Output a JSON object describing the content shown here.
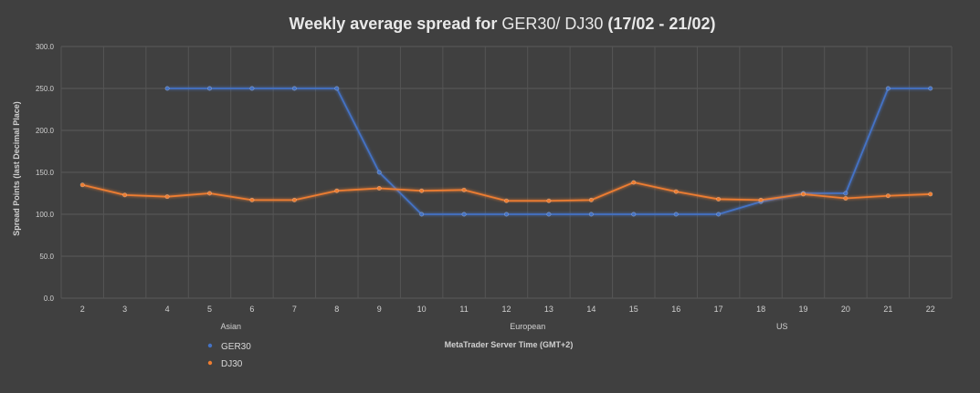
{
  "chart_data": {
    "type": "line",
    "title_prefix": "Weekly average spread for ",
    "title_series": "GER30/ DJ30",
    "title_suffix": " (17/02 - 21/02)",
    "xlabel": "MetaTrader Server Time (GMT+2)",
    "ylabel": "Spread Points  (last Decimal Place)",
    "ylim": [
      0,
      300
    ],
    "y_ticks": [
      "0.0",
      "50.0",
      "100.0",
      "150.0",
      "200.0",
      "250.0",
      "300.0"
    ],
    "categories": [
      "2",
      "3",
      "4",
      "5",
      "6",
      "7",
      "8",
      "9",
      "10",
      "11",
      "12",
      "13",
      "14",
      "15",
      "16",
      "17",
      "18",
      "19",
      "20",
      "21",
      "22"
    ],
    "sessions": [
      {
        "label": "Asian",
        "category": "6"
      },
      {
        "label": "European",
        "category": "13"
      },
      {
        "label": "US",
        "category": "19"
      }
    ],
    "grid": true,
    "legend_position": "bottom-left",
    "series": [
      {
        "name": "GER30",
        "color": "#4472c4",
        "values": [
          null,
          null,
          250,
          250,
          250,
          250,
          250,
          150,
          100,
          100,
          100,
          100,
          100,
          100,
          100,
          100,
          115,
          125,
          125,
          250,
          250
        ]
      },
      {
        "name": "DJ30",
        "color": "#ed7d31",
        "values": [
          135,
          123,
          121,
          125,
          117,
          117,
          128,
          131,
          128,
          129,
          116,
          116,
          117,
          138,
          127,
          118,
          117,
          124,
          119,
          122,
          124
        ]
      }
    ]
  }
}
